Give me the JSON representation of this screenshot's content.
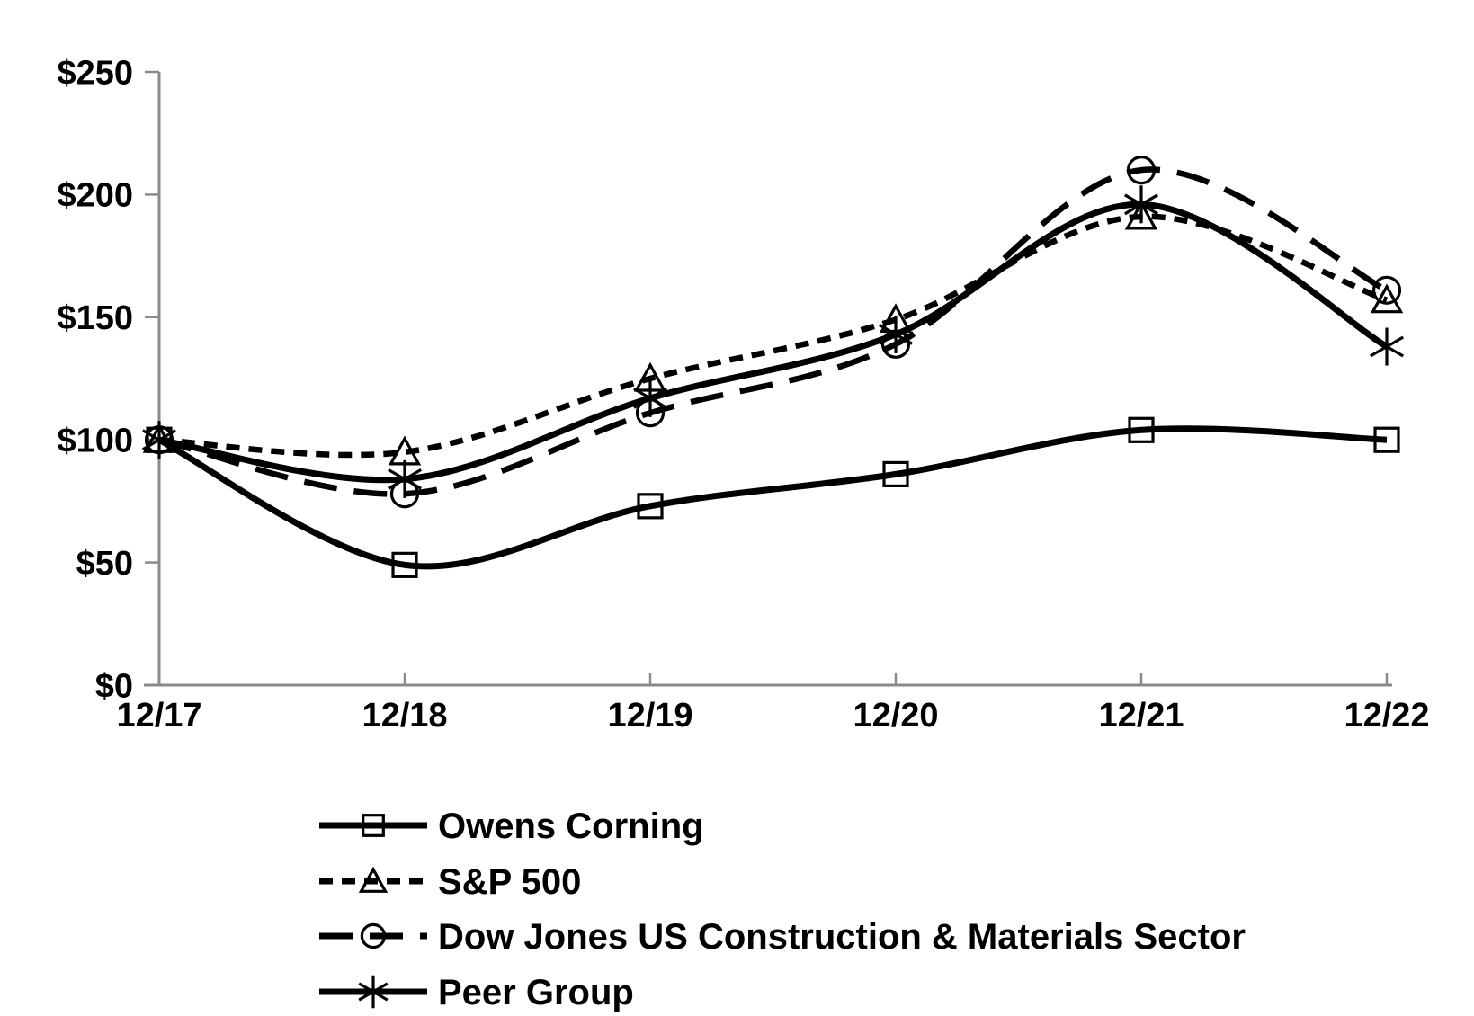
{
  "chart_data": {
    "type": "line",
    "title": "",
    "xlabel": "",
    "ylabel": "",
    "categories": [
      "12/17",
      "12/18",
      "12/19",
      "12/20",
      "12/21",
      "12/22"
    ],
    "series": [
      {
        "name": "Owens Corning",
        "marker": "square",
        "line_style": "solid",
        "values": [
          100,
          49,
          73,
          86,
          104,
          100
        ]
      },
      {
        "name": "S&P 500",
        "marker": "triangle",
        "line_style": "short-dash",
        "values": [
          100,
          95,
          125,
          149,
          191,
          157
        ]
      },
      {
        "name": "Dow Jones US Construction & Materials Sector",
        "marker": "circle",
        "line_style": "long-dash",
        "values": [
          100,
          78,
          111,
          139,
          210,
          161
        ]
      },
      {
        "name": "Peer Group",
        "marker": "asterisk",
        "line_style": "solid",
        "values": [
          100,
          84,
          117,
          143,
          196,
          138
        ]
      }
    ],
    "ylim": [
      0,
      250
    ],
    "ytick_interval": 50,
    "ytick_labels": [
      "$0",
      "$50",
      "$100",
      "$150",
      "$200",
      "$250"
    ],
    "grid": false,
    "smoothed_lines": true,
    "legend_position": "bottom-left",
    "colors": {
      "series": "#000000",
      "axis": "#8a8a8a",
      "text": "#000000",
      "background": "#ffffff"
    }
  }
}
